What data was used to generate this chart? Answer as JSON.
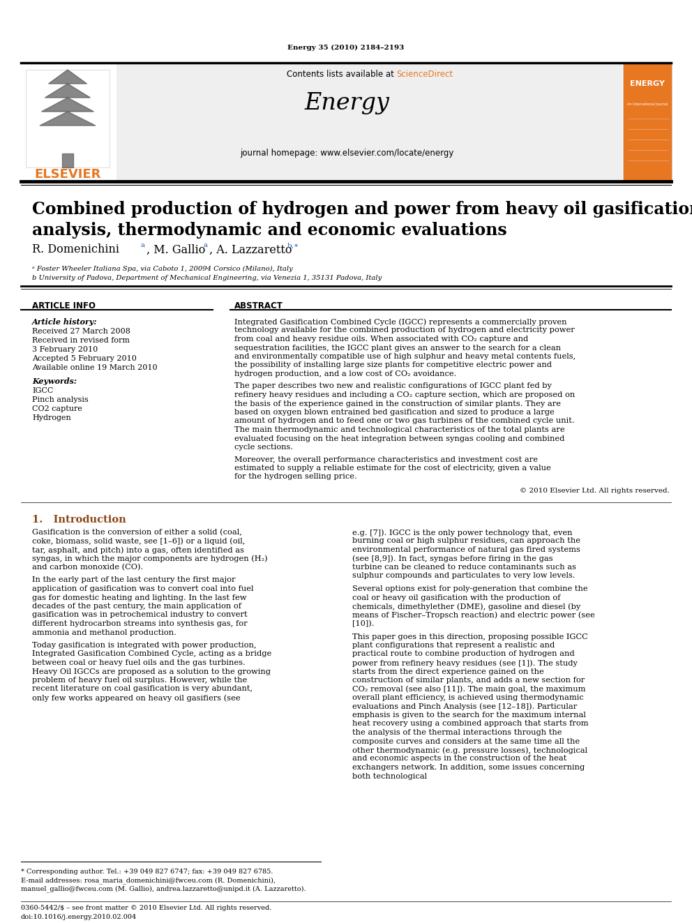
{
  "journal_ref": "Energy 35 (2010) 2184–2193",
  "contents_text": "Contents lists available at",
  "sciencedirect_text": "ScienceDirect",
  "journal_name": "Energy",
  "journal_homepage": "journal homepage: www.elsevier.com/locate/energy",
  "elsevier_text": "ELSEVIER",
  "title_line1": "Combined production of hydrogen and power from heavy oil gasification: Pinch",
  "title_line2": "analysis, thermodynamic and economic evaluations",
  "affil_a": "ᵃ Foster Wheeler Italiana Spa, via Caboto 1, 20094 Corsico (Milano), Italy",
  "affil_b": "b University of Padova, Department of Mechanical Engineering, via Venezia 1, 35131 Padova, Italy",
  "article_info_title": "ARTICLE INFO",
  "abstract_title": "ABSTRACT",
  "article_history_label": "Article history:",
  "received1": "Received 27 March 2008",
  "received2": "Received in revised form",
  "received2b": "3 February 2010",
  "accepted": "Accepted 5 February 2010",
  "available": "Available online 19 March 2010",
  "keywords_label": "Keywords:",
  "kw1": "IGCC",
  "kw2": "Pinch analysis",
  "kw3": "CO2 capture",
  "kw4": "Hydrogen",
  "abstract_p1": "Integrated Gasification Combined Cycle (IGCC) represents a commercially proven technology available for the combined production of hydrogen and electricity power from coal and heavy residue oils. When associated with CO₂ capture and sequestration facilities, the IGCC plant gives an answer to the search for a clean and environmentally compatible use of high sulphur and heavy metal contents fuels, the possibility of installing large size plants for competitive electric power and hydrogen production, and a low cost of CO₂ avoidance.",
  "abstract_p2": "The paper describes two new and realistic configurations of IGCC plant fed by refinery heavy residues and including a CO₂ capture section, which are proposed on the basis of the experience gained in the construction of similar plants. They are based on oxygen blown entrained bed gasification and sized to produce a large amount of hydrogen and to feed one or two gas turbines of the combined cycle unit. The main thermodynamic and technological characteristics of the total plants are evaluated focusing on the heat integration between syngas cooling and combined cycle sections.",
  "abstract_p3": "Moreover, the overall performance characteristics and investment cost are estimated to supply a reliable estimate for the cost of electricity, given a value for the hydrogen selling price.",
  "copyright": "© 2010 Elsevier Ltd. All rights reserved.",
  "section1_title": "1.   Introduction",
  "intro_col1_p1": "Gasification is the conversion of either a solid (coal, coke, biomass, solid waste, see [1–6]) or a liquid (oil, tar, asphalt, and pitch) into a gas, often identified as syngas, in which the major components are hydrogen (H₂) and carbon monoxide (CO).",
  "intro_col1_p2": "In the early part of the last century the first major application of gasification was to convert coal into fuel gas for domestic heating and lighting. In the last few decades of the past century, the main application of gasification was in petrochemical industry to convert different hydrocarbon streams into synthesis gas, for ammonia and methanol production.",
  "intro_col1_p3": "Today gasification is integrated with power production, Integrated Gasification Combined Cycle, acting as a bridge between coal or heavy fuel oils and the gas turbines. Heavy Oil IGCCs are proposed as a solution to the growing problem of heavy fuel oil surplus. However, while the recent literature on coal gasification is very abundant, only few works appeared on heavy oil gasifiers (see",
  "intro_col2_p1": "e.g. [7]). IGCC is the only power technology that, even burning coal or high sulphur residues, can approach the environmental performance of natural gas fired systems (see [8,9]). In fact, syngas before firing in the gas turbine can be cleaned to reduce contaminants such as sulphur compounds and particulates to very low levels.",
  "intro_col2_p2": "Several options exist for poly-generation that combine the coal or heavy oil gasification with the production of chemicals, dimethylether (DME), gasoline and diesel (by means of Fischer–Tropsch reaction) and electric power (see [10]).",
  "intro_col2_p3": "This paper goes in this direction, proposing possible IGCC plant configurations that represent a realistic and practical route to combine production of hydrogen and power from refinery heavy residues (see [1]). The study starts from the direct experience gained on the construction of similar plants, and adds a new section for CO₂ removal (see also [11]). The main goal, the maximum overall plant efficiency, is achieved using thermodynamic evaluations and Pinch Analysis (see [12–18]). Particular emphasis is given to the search for the maximum internal heat recovery using a combined approach that starts from the analysis of the thermal interactions through the composite curves and considers at the same time all the other thermodynamic (e.g. pressure losses), technological and economic aspects in the construction of the heat exchangers network. In addition, some issues concerning both technological",
  "footnote_star": "* Corresponding author. Tel.: +39 049 827 6747; fax: +39 049 827 6785.",
  "footnote_email1": "E-mail addresses: rosa_maria_domenichini@fwceu.com (R. Domenichini),",
  "footnote_email2": "manuel_gallio@fwceu.com (M. Gallio), andrea.lazzaretto@unipd.it (A. Lazzaretto).",
  "issn_line": "0360-5442/$ – see front matter © 2010 Elsevier Ltd. All rights reserved.",
  "doi_line": "doi:10.1016/j.energy.2010.02.004",
  "bg_color": "#ffffff",
  "header_bg": "#f0f0f0",
  "orange_color": "#e87722",
  "blue_color": "#2255aa",
  "title_color": "#000000",
  "section_color": "#8B4513"
}
